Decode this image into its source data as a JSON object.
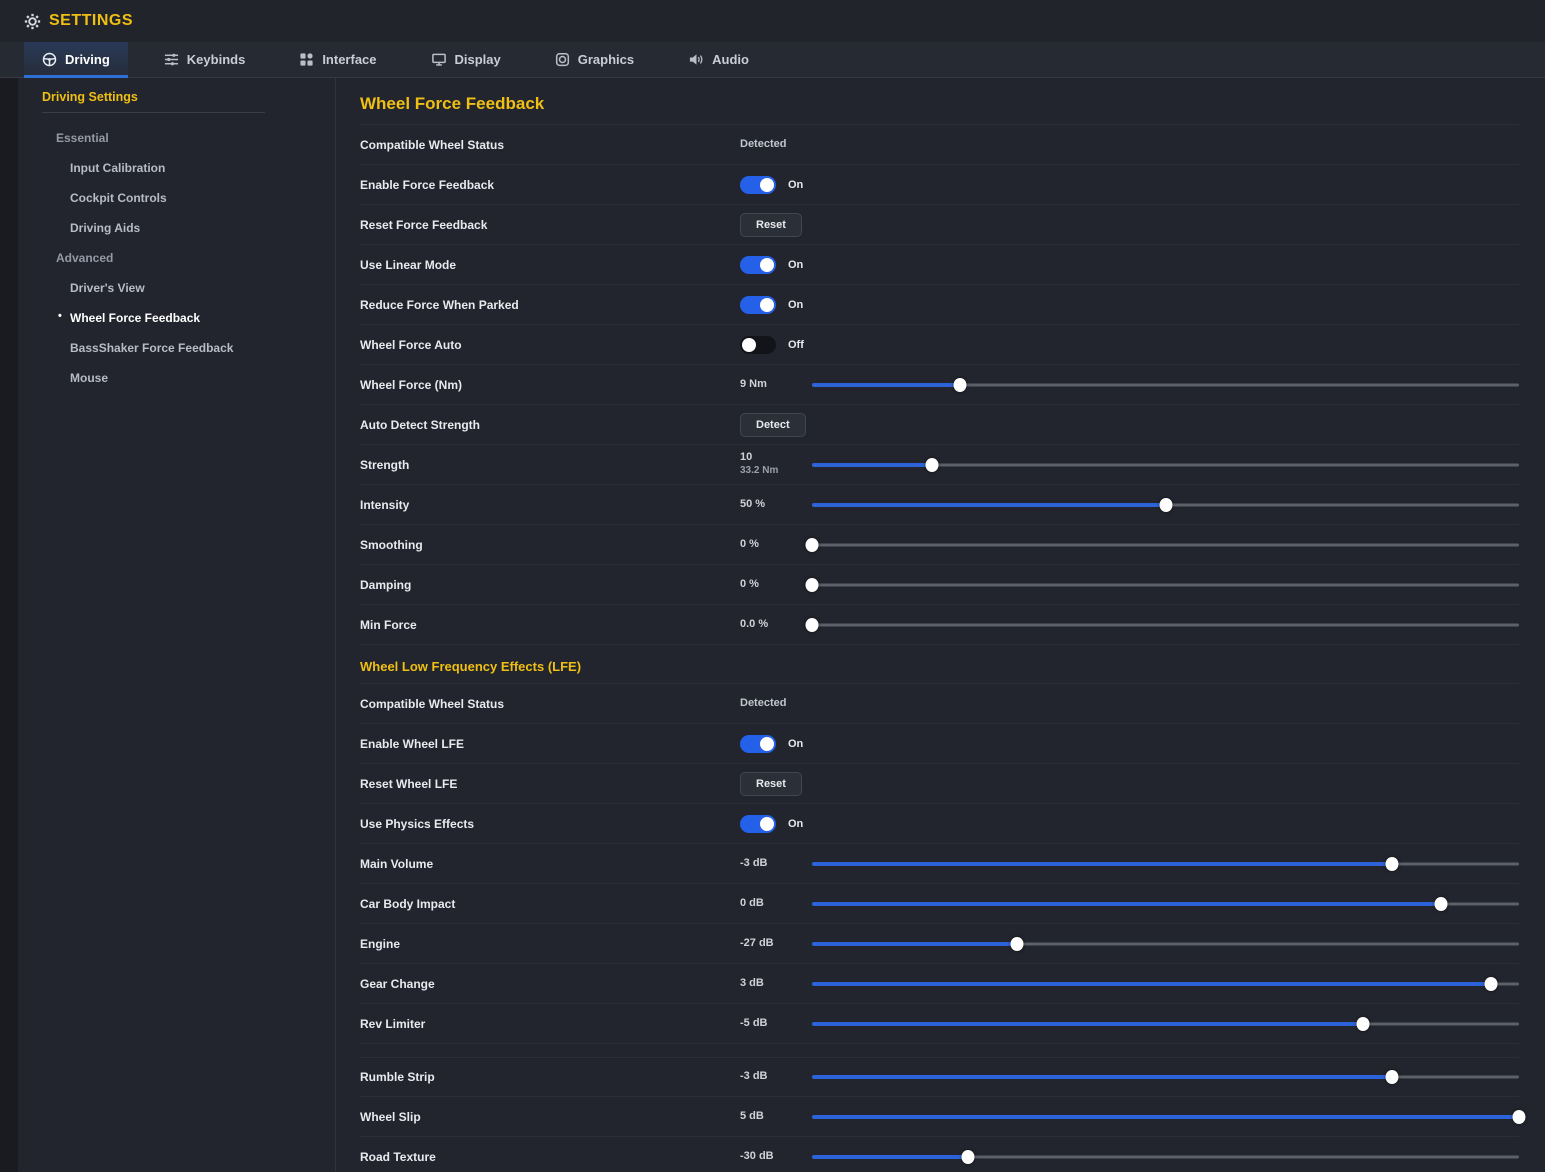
{
  "header": {
    "title": "SETTINGS"
  },
  "tabs": {
    "items": [
      {
        "label": "Driving",
        "icon": "steering-wheel",
        "active": true
      },
      {
        "label": "Keybinds",
        "icon": "keybinds",
        "active": false
      },
      {
        "label": "Interface",
        "icon": "interface",
        "active": false
      },
      {
        "label": "Display",
        "icon": "display",
        "active": false
      },
      {
        "label": "Graphics",
        "icon": "graphics",
        "active": false
      },
      {
        "label": "Audio",
        "icon": "audio",
        "active": false
      }
    ]
  },
  "sidebar": {
    "title": "Driving Settings",
    "groups": [
      {
        "label": "Essential",
        "items": [
          {
            "label": "Input Calibration",
            "active": false
          },
          {
            "label": "Cockpit Controls",
            "active": false
          },
          {
            "label": "Driving Aids",
            "active": false
          }
        ]
      },
      {
        "label": "Advanced",
        "items": [
          {
            "label": "Driver's View",
            "active": false
          },
          {
            "label": "Wheel Force Feedback",
            "active": true
          },
          {
            "label": "BassShaker Force Feedback",
            "active": false
          },
          {
            "label": "Mouse",
            "active": false
          }
        ]
      }
    ]
  },
  "sections": [
    {
      "title": "Wheel Force Feedback",
      "level": "primary",
      "rows": [
        {
          "label": "Compatible Wheel Status",
          "type": "text",
          "value": "Detected"
        },
        {
          "label": "Enable Force Feedback",
          "type": "toggle",
          "on": true,
          "state": "On"
        },
        {
          "label": "Reset Force Feedback",
          "type": "button",
          "button": "Reset"
        },
        {
          "label": "Use Linear Mode",
          "type": "toggle",
          "on": true,
          "state": "On"
        },
        {
          "label": "Reduce Force When Parked",
          "type": "toggle",
          "on": true,
          "state": "On"
        },
        {
          "label": "Wheel Force Auto",
          "type": "toggle",
          "on": false,
          "state": "Off"
        },
        {
          "label": "Wheel Force (Nm)",
          "type": "slider",
          "value": "9 Nm",
          "percent": 21
        },
        {
          "label": "Auto Detect Strength",
          "type": "button",
          "button": "Detect"
        },
        {
          "label": "Strength",
          "type": "slider",
          "value": "10",
          "sub": "33.2 Nm",
          "percent": 17
        },
        {
          "label": "Intensity",
          "type": "slider",
          "value": "50 %",
          "percent": 50
        },
        {
          "label": "Smoothing",
          "type": "slider",
          "value": "0 %",
          "percent": 0
        },
        {
          "label": "Damping",
          "type": "slider",
          "value": "0 %",
          "percent": 0
        },
        {
          "label": "Min Force",
          "type": "slider",
          "value": "0.0 %",
          "percent": 0
        }
      ]
    },
    {
      "title": "Wheel Low Frequency Effects (LFE)",
      "level": "secondary",
      "rows": [
        {
          "label": "Compatible Wheel Status",
          "type": "text",
          "value": "Detected"
        },
        {
          "label": "Enable Wheel LFE",
          "type": "toggle",
          "on": true,
          "state": "On"
        },
        {
          "label": "Reset Wheel LFE",
          "type": "button",
          "button": "Reset"
        },
        {
          "label": "Use Physics Effects",
          "type": "toggle",
          "on": true,
          "state": "On"
        },
        {
          "label": "Main Volume",
          "type": "slider",
          "value": "-3 dB",
          "percent": 82
        },
        {
          "label": "Car Body Impact",
          "type": "slider",
          "value": "0 dB",
          "percent": 89
        },
        {
          "label": "Engine",
          "type": "slider",
          "value": "-27 dB",
          "percent": 29
        },
        {
          "label": "Gear Change",
          "type": "slider",
          "value": "3 dB",
          "percent": 96
        },
        {
          "label": "Rev Limiter",
          "type": "slider",
          "value": "-5 dB",
          "percent": 78,
          "gap_after": true
        },
        {
          "label": "Rumble Strip",
          "type": "slider",
          "value": "-3 dB",
          "percent": 82
        },
        {
          "label": "Wheel Slip",
          "type": "slider",
          "value": "5 dB",
          "percent": 100
        },
        {
          "label": "Road Texture",
          "type": "slider",
          "value": "-30 dB",
          "percent": 22
        }
      ]
    }
  ],
  "colors": {
    "heading_yellow": "#f0bf13",
    "accent_blue": "#2f6fd8",
    "toggle_on": "#2460e8",
    "slider_fill": "#2c63d8",
    "background": "#22252d"
  }
}
